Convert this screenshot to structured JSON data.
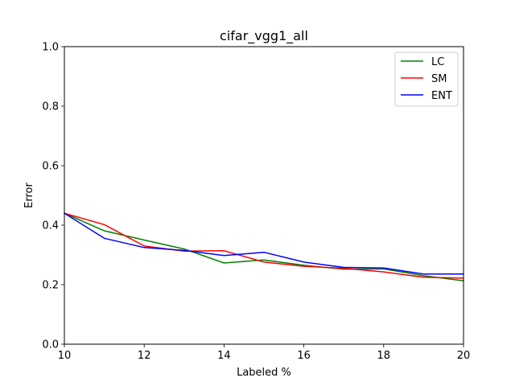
{
  "chart_data": {
    "type": "line",
    "title": "cifar_vgg1_all",
    "xlabel": "Labeled %",
    "ylabel": "Error",
    "xlim": [
      10,
      20
    ],
    "ylim": [
      0.0,
      1.0
    ],
    "xticks": [
      "10",
      "12",
      "14",
      "16",
      "18",
      "20"
    ],
    "yticks": [
      "0.0",
      "0.2",
      "0.4",
      "0.6",
      "0.8",
      "1.0"
    ],
    "grid": false,
    "legend_position": "top-right",
    "x": [
      10,
      11,
      12,
      13,
      14,
      15,
      16,
      17,
      18,
      19,
      20
    ],
    "series": [
      {
        "name": "LC",
        "color": "#008000",
        "values": [
          0.44,
          0.381,
          0.35,
          0.32,
          0.273,
          0.283,
          0.265,
          0.252,
          0.253,
          0.23,
          0.213
        ]
      },
      {
        "name": "SM",
        "color": "#ff0000",
        "values": [
          0.44,
          0.402,
          0.33,
          0.313,
          0.314,
          0.276,
          0.262,
          0.255,
          0.243,
          0.225,
          0.222
        ]
      },
      {
        "name": "ENT",
        "color": "#0000ff",
        "values": [
          0.44,
          0.356,
          0.325,
          0.315,
          0.298,
          0.309,
          0.276,
          0.258,
          0.256,
          0.236,
          0.236
        ]
      }
    ]
  }
}
